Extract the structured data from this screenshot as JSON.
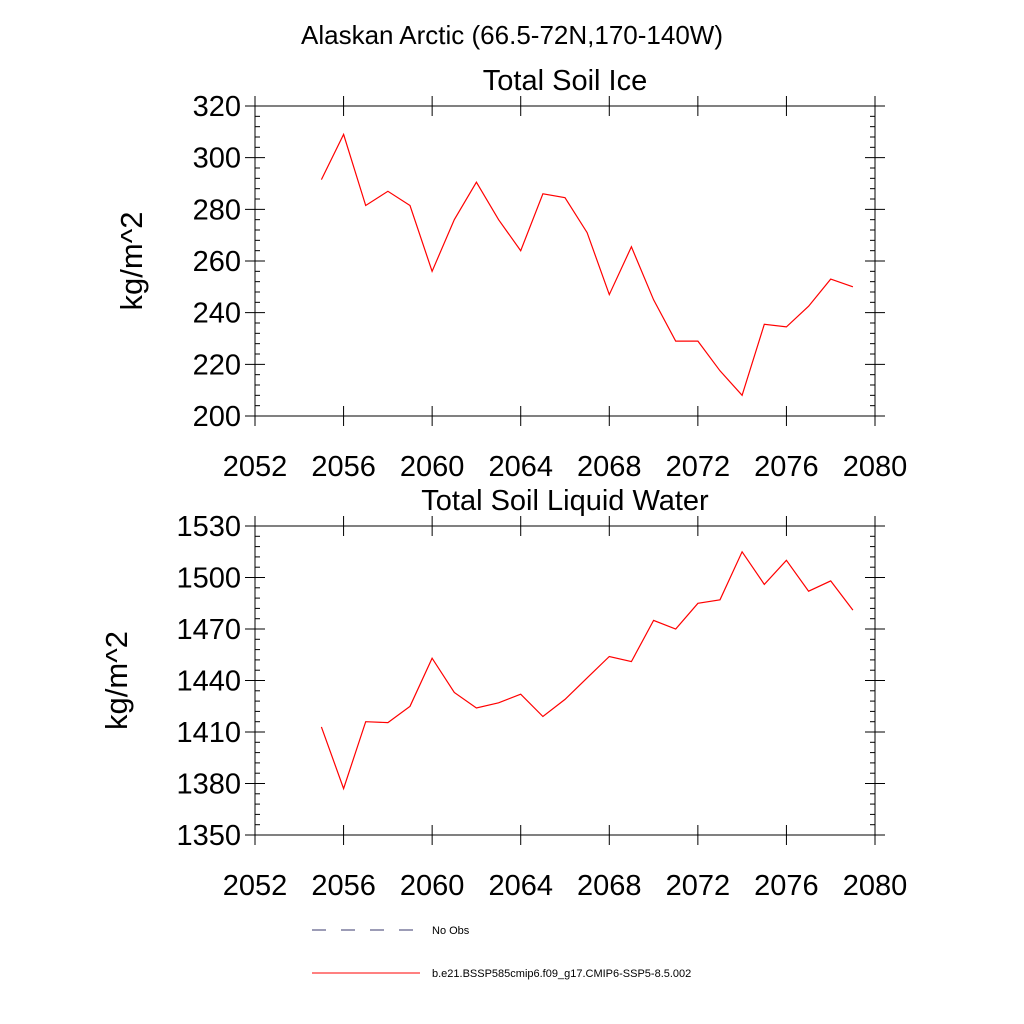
{
  "figure": {
    "suptitle": "Alaskan Arctic (66.5-72N,170-140W)"
  },
  "chart_data": [
    {
      "type": "line",
      "title": "Total Soil Ice",
      "xlabel": "",
      "ylabel": "kg/m^2",
      "xlim": [
        2052,
        2080
      ],
      "ylim": [
        200,
        320
      ],
      "xticks": [
        2052,
        2056,
        2060,
        2064,
        2068,
        2072,
        2076,
        2080
      ],
      "yticks": [
        200,
        220,
        240,
        260,
        280,
        300,
        320
      ],
      "grid": false,
      "series": [
        {
          "name": "b.e21.BSSP585cmip6.f09_g17.CMIP6-SSP5-8.5.002",
          "color": "#ff0000",
          "x": [
            2055,
            2056,
            2057,
            2058,
            2059,
            2060,
            2061,
            2062,
            2063,
            2064,
            2065,
            2066,
            2067,
            2068,
            2069,
            2070,
            2071,
            2072,
            2073,
            2074,
            2075,
            2076,
            2077,
            2078,
            2079
          ],
          "values": [
            291.5,
            309,
            281.5,
            287,
            281.5,
            256,
            276,
            290.5,
            276,
            264,
            286,
            284.5,
            271,
            247,
            265.5,
            245,
            229,
            229,
            217.5,
            208,
            235.5,
            234.5,
            242.5,
            253,
            250
          ]
        }
      ]
    },
    {
      "type": "line",
      "title": "Total Soil Liquid Water",
      "xlabel": "",
      "ylabel": "kg/m^2",
      "xlim": [
        2052,
        2080
      ],
      "ylim": [
        1350,
        1530
      ],
      "xticks": [
        2052,
        2056,
        2060,
        2064,
        2068,
        2072,
        2076,
        2080
      ],
      "yticks": [
        1350,
        1380,
        1410,
        1440,
        1470,
        1500,
        1530
      ],
      "grid": false,
      "series": [
        {
          "name": "b.e21.BSSP585cmip6.f09_g17.CMIP6-SSP5-8.5.002",
          "color": "#ff0000",
          "x": [
            2055,
            2056,
            2057,
            2058,
            2059,
            2060,
            2061,
            2062,
            2063,
            2064,
            2065,
            2066,
            2067,
            2068,
            2069,
            2070,
            2071,
            2072,
            2073,
            2074,
            2075,
            2076,
            2077,
            2078,
            2079
          ],
          "values": [
            1413,
            1377,
            1416,
            1415.5,
            1425,
            1453,
            1433,
            1424,
            1427,
            1432,
            1419,
            1429,
            1441.5,
            1454,
            1451,
            1475,
            1470,
            1485,
            1487,
            1515,
            1496,
            1510,
            1492,
            1498,
            1481
          ]
        }
      ]
    }
  ],
  "legend": {
    "placement": "bottom",
    "entries": [
      {
        "label": "No Obs",
        "style": "dashed",
        "color": "#3a3a6e"
      },
      {
        "label": "b.e21.BSSP585cmip6.f09_g17.CMIP6-SSP5-8.5.002",
        "style": "solid",
        "color": "#ff0000"
      }
    ]
  }
}
